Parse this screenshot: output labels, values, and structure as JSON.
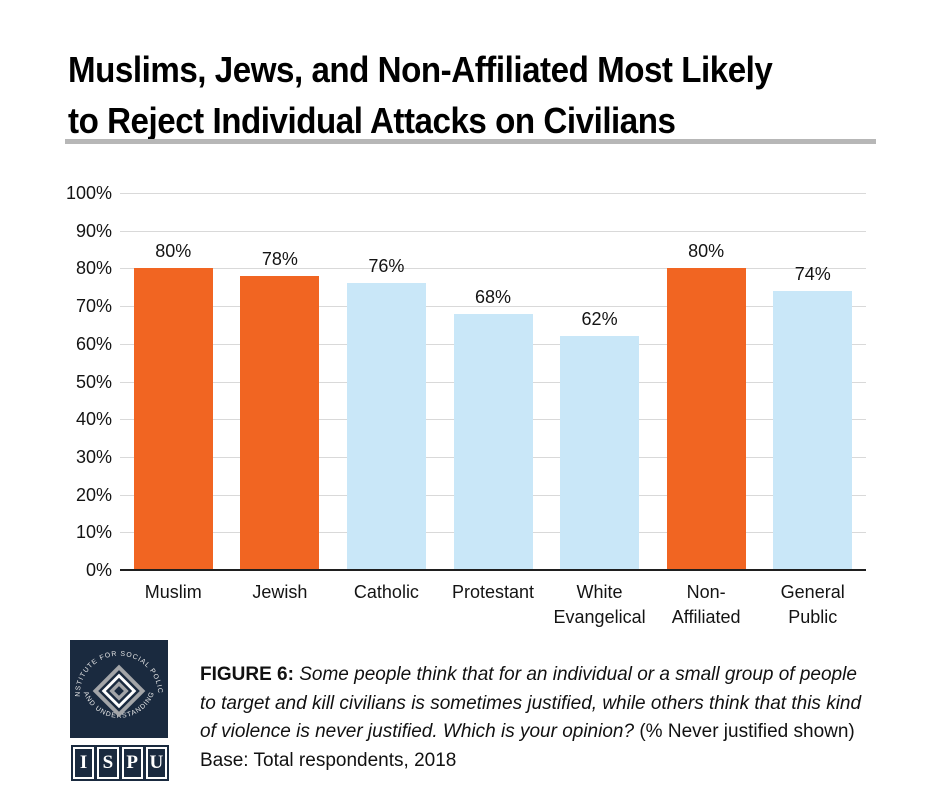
{
  "title": {
    "line1": "Muslims, Jews, and Non-Affiliated Most Likely",
    "line2": "to Reject Individual Attacks on Civilians"
  },
  "chart_data": {
    "type": "bar",
    "title": "Muslims, Jews, and Non-Affiliated Most Likely to Reject Individual Attacks on Civilians",
    "categories": [
      "Muslim",
      "Jewish",
      "Catholic",
      "Protestant",
      "White Evangelical",
      "Non-Affiliated",
      "General Public"
    ],
    "category_lines": [
      [
        "Muslim"
      ],
      [
        "Jewish"
      ],
      [
        "Catholic"
      ],
      [
        "Protestant"
      ],
      [
        "White",
        "Evangelical"
      ],
      [
        "Non-",
        "Affiliated"
      ],
      [
        "General",
        "Public"
      ]
    ],
    "values": [
      80,
      78,
      76,
      68,
      62,
      80,
      74
    ],
    "data_labels": [
      "80%",
      "78%",
      "76%",
      "68%",
      "62%",
      "80%",
      "74%"
    ],
    "bar_colors": [
      "#F16522",
      "#F16522",
      "#C9E7F8",
      "#C9E7F8",
      "#C9E7F8",
      "#F16522",
      "#C9E7F8"
    ],
    "y_ticks": [
      "100%",
      "90%",
      "80%",
      "70%",
      "60%",
      "50%",
      "40%",
      "30%",
      "20%",
      "10%",
      "0%"
    ],
    "ylim": [
      0,
      100
    ],
    "grid": true,
    "legend": false,
    "xlabel": "",
    "ylabel": "",
    "highlight_color": "#F16522",
    "default_color": "#C9E7F8",
    "gridline_color": "#d9d9d9"
  },
  "footer": {
    "caption_label": "FIGURE 6:",
    "caption_italic": "Some people think that for an individual or a small group of people to target and kill civilians is sometimes justified, while others think that this kind of violence is never justified. Which is your opinion?",
    "caption_plain": "(% Never justified shown) Base: Total respondents, 2018",
    "logo": {
      "arc_top": "INSTITUTE FOR SOCIAL POLICY",
      "arc_bottom": "AND UNDERSTANDING",
      "letters": [
        "I",
        "S",
        "P",
        "U"
      ],
      "navy": "#1a2a3f",
      "gray": "#a3a5a8"
    }
  }
}
